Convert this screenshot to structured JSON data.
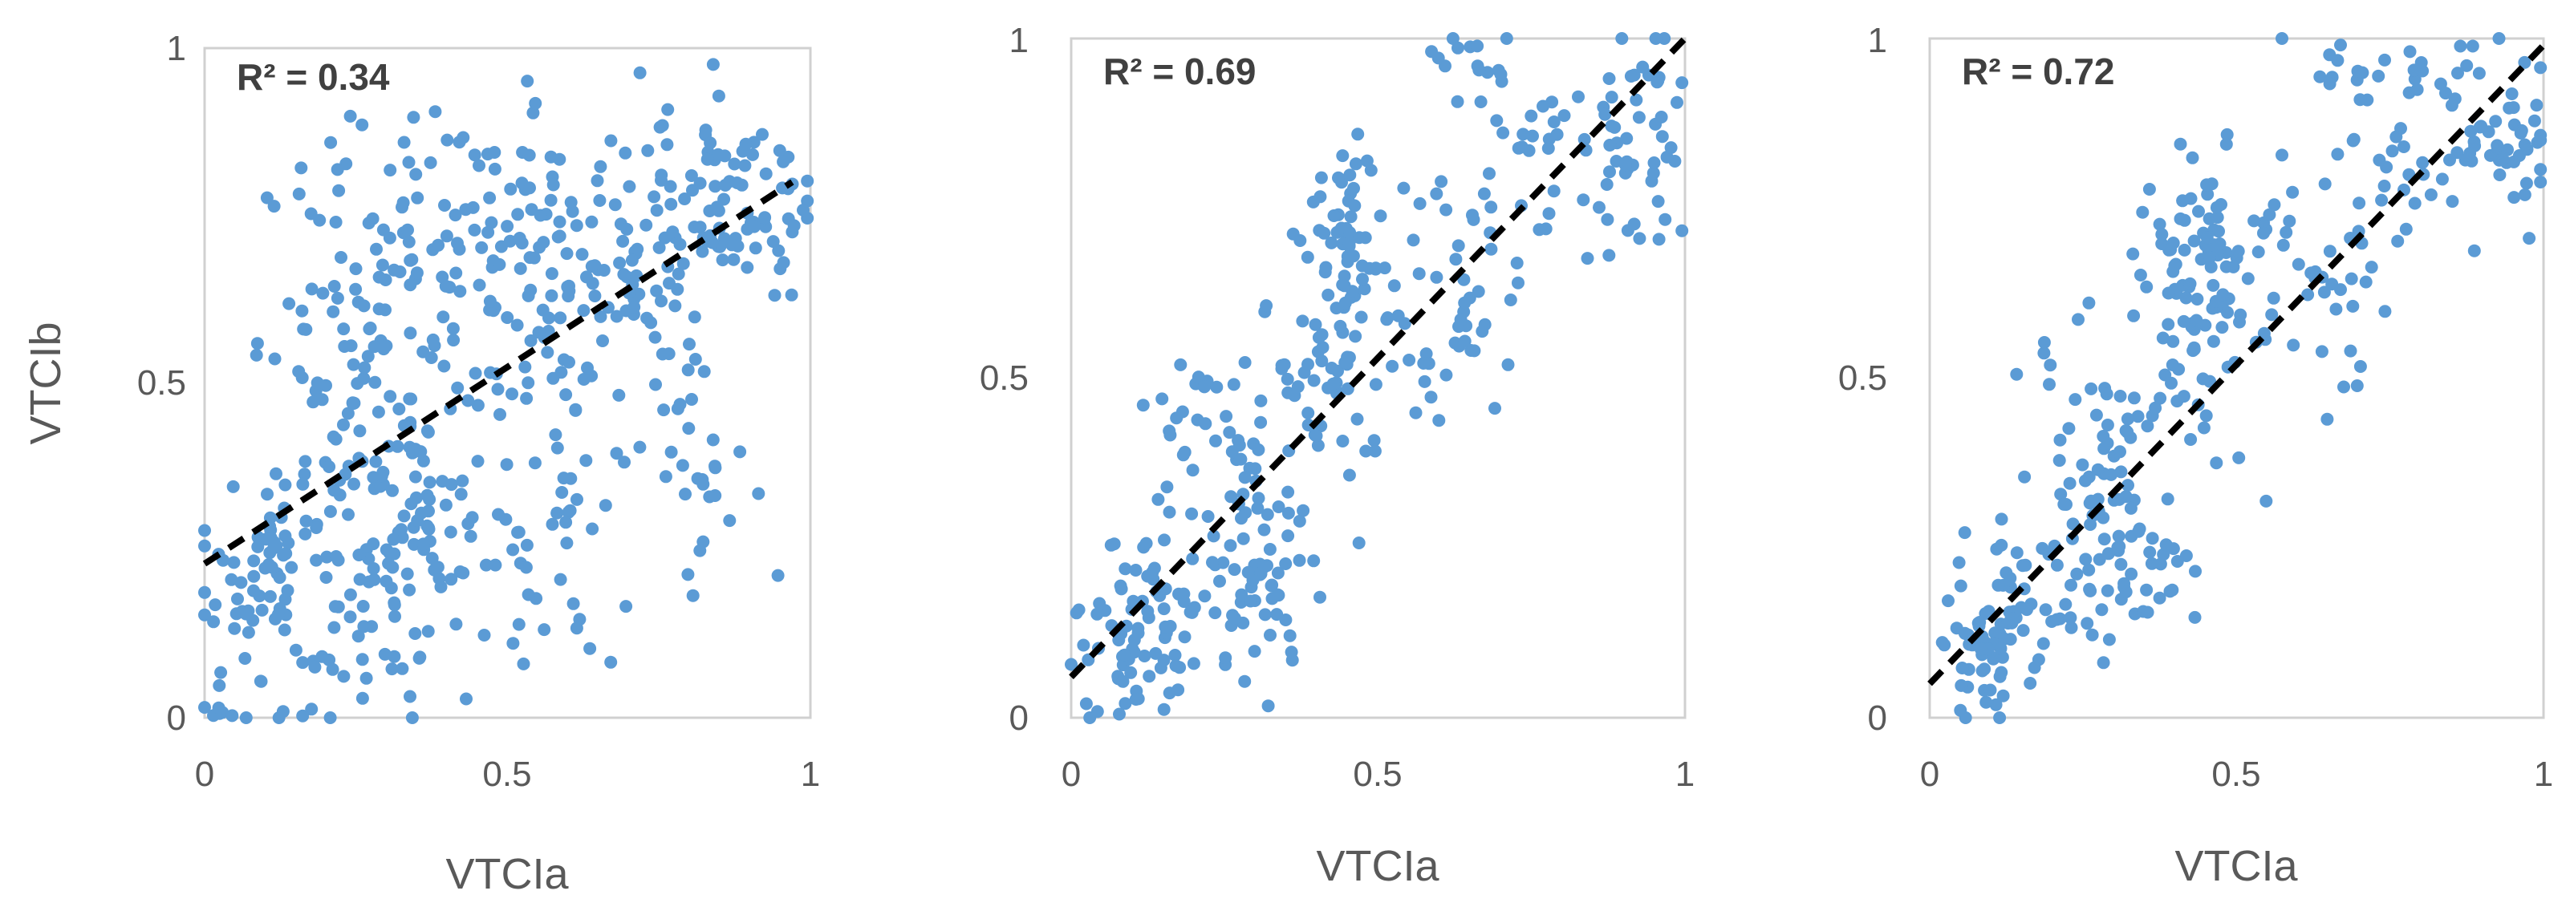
{
  "colors": {
    "marker": "#5b9bd5",
    "trendline": "#000000",
    "frame": "#d0d0d0",
    "text": "#595959"
  },
  "chart_data": [
    {
      "type": "scatter",
      "xlabel": "VTCIa",
      "ylabel": "VTCIb",
      "annotation": "R² = 0.34",
      "xlim": [
        0,
        1
      ],
      "ylim": [
        0,
        1
      ],
      "xticks": [
        "0",
        "0.5",
        "1"
      ],
      "yticks": [
        "0",
        "0.5",
        "1"
      ],
      "trendline": {
        "x": [
          0,
          0.97
        ],
        "y": [
          0.23,
          0.8
        ]
      },
      "clusters": [
        {
          "cx": 0.12,
          "cy": 0.22,
          "sx": 0.06,
          "sy": 0.1,
          "n": 90
        },
        {
          "cx": 0.32,
          "cy": 0.2,
          "sx": 0.05,
          "sy": 0.09,
          "n": 50
        },
        {
          "cx": 0.25,
          "cy": 0.55,
          "sx": 0.08,
          "sy": 0.15,
          "n": 90
        },
        {
          "cx": 0.4,
          "cy": 0.45,
          "sx": 0.1,
          "sy": 0.15,
          "n": 90
        },
        {
          "cx": 0.5,
          "cy": 0.72,
          "sx": 0.1,
          "sy": 0.09,
          "n": 90
        },
        {
          "cx": 0.7,
          "cy": 0.65,
          "sx": 0.1,
          "sy": 0.13,
          "n": 100
        },
        {
          "cx": 0.55,
          "cy": 0.25,
          "sx": 0.1,
          "sy": 0.1,
          "n": 35
        },
        {
          "cx": 0.8,
          "cy": 0.38,
          "sx": 0.05,
          "sy": 0.08,
          "n": 25
        },
        {
          "cx": 0.88,
          "cy": 0.78,
          "sx": 0.07,
          "sy": 0.07,
          "n": 70
        },
        {
          "cx": 0.05,
          "cy": 0.04,
          "sx": 0.04,
          "sy": 0.04,
          "n": 12
        }
      ]
    },
    {
      "type": "scatter",
      "xlabel": "VTCIa",
      "ylabel": "",
      "annotation": "R² = 0.69",
      "xlim": [
        0,
        1
      ],
      "ylim": [
        0,
        1
      ],
      "xticks": [
        "0",
        "0.5",
        "1"
      ],
      "yticks": [
        "0",
        "0.5",
        "1"
      ],
      "trendline": {
        "x": [
          0,
          1
        ],
        "y": [
          0.06,
          1.0
        ]
      },
      "clusters": [
        {
          "cx": 0.12,
          "cy": 0.15,
          "sx": 0.05,
          "sy": 0.07,
          "n": 70
        },
        {
          "cx": 0.3,
          "cy": 0.2,
          "sx": 0.06,
          "sy": 0.07,
          "n": 60
        },
        {
          "cx": 0.25,
          "cy": 0.4,
          "sx": 0.06,
          "sy": 0.08,
          "n": 50
        },
        {
          "cx": 0.42,
          "cy": 0.55,
          "sx": 0.05,
          "sy": 0.1,
          "n": 60
        },
        {
          "cx": 0.45,
          "cy": 0.72,
          "sx": 0.04,
          "sy": 0.07,
          "n": 40
        },
        {
          "cx": 0.6,
          "cy": 0.62,
          "sx": 0.07,
          "sy": 0.1,
          "n": 50
        },
        {
          "cx": 0.72,
          "cy": 0.82,
          "sx": 0.06,
          "sy": 0.08,
          "n": 30
        },
        {
          "cx": 0.92,
          "cy": 0.85,
          "sx": 0.05,
          "sy": 0.07,
          "n": 55
        },
        {
          "cx": 0.65,
          "cy": 0.97,
          "sx": 0.04,
          "sy": 0.02,
          "n": 12
        },
        {
          "cx": 0.08,
          "cy": 0.04,
          "sx": 0.03,
          "sy": 0.03,
          "n": 10
        }
      ]
    },
    {
      "type": "scatter",
      "xlabel": "VTCIa",
      "ylabel": "",
      "annotation": "R² = 0.72",
      "xlim": [
        0,
        1
      ],
      "ylim": [
        0,
        1
      ],
      "xticks": [
        "0",
        "0.5",
        "1"
      ],
      "yticks": [
        "0",
        "0.5",
        "1"
      ],
      "trendline": {
        "x": [
          0,
          1
        ],
        "y": [
          0.05,
          0.99
        ]
      },
      "clusters": [
        {
          "cx": 0.12,
          "cy": 0.15,
          "sx": 0.05,
          "sy": 0.07,
          "n": 70
        },
        {
          "cx": 0.3,
          "cy": 0.2,
          "sx": 0.06,
          "sy": 0.07,
          "n": 60
        },
        {
          "cx": 0.27,
          "cy": 0.4,
          "sx": 0.06,
          "sy": 0.08,
          "n": 50
        },
        {
          "cx": 0.42,
          "cy": 0.55,
          "sx": 0.05,
          "sy": 0.1,
          "n": 60
        },
        {
          "cx": 0.45,
          "cy": 0.72,
          "sx": 0.04,
          "sy": 0.07,
          "n": 40
        },
        {
          "cx": 0.62,
          "cy": 0.65,
          "sx": 0.07,
          "sy": 0.1,
          "n": 50
        },
        {
          "cx": 0.75,
          "cy": 0.82,
          "sx": 0.06,
          "sy": 0.08,
          "n": 30
        },
        {
          "cx": 0.93,
          "cy": 0.86,
          "sx": 0.05,
          "sy": 0.07,
          "n": 55
        },
        {
          "cx": 0.66,
          "cy": 0.97,
          "sx": 0.04,
          "sy": 0.02,
          "n": 12
        },
        {
          "cx": 0.08,
          "cy": 0.04,
          "sx": 0.03,
          "sy": 0.03,
          "n": 10
        }
      ]
    }
  ]
}
